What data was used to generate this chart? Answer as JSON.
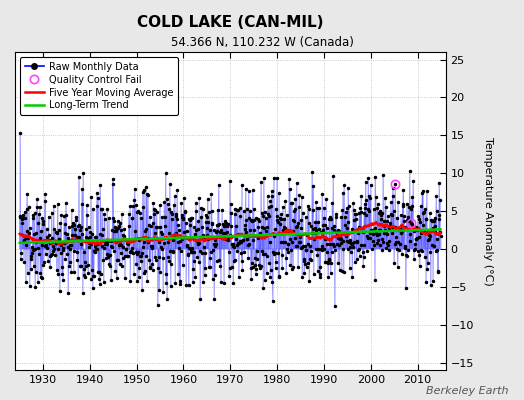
{
  "title": "COLD LAKE (CAN-MIL)",
  "subtitle": "54.366 N, 110.232 W (Canada)",
  "ylabel": "Temperature Anomaly (°C)",
  "watermark": "Berkeley Earth",
  "ylim": [
    -16,
    26
  ],
  "yticks": [
    -15,
    -10,
    -5,
    0,
    5,
    10,
    15,
    20,
    25
  ],
  "year_start": 1925,
  "year_end": 2015,
  "xlim": [
    1924,
    2016
  ],
  "xticks": [
    1930,
    1940,
    1950,
    1960,
    1970,
    1980,
    1990,
    2000,
    2010
  ],
  "raw_color": "#0000ff",
  "raw_color_light": "#aaaaff",
  "qc_color": "#ff44ff",
  "moving_avg_color": "#ff0000",
  "trend_color": "#00cc00",
  "background_color": "#e8e8e8",
  "plot_bg_color": "#ffffff",
  "seed": 137
}
